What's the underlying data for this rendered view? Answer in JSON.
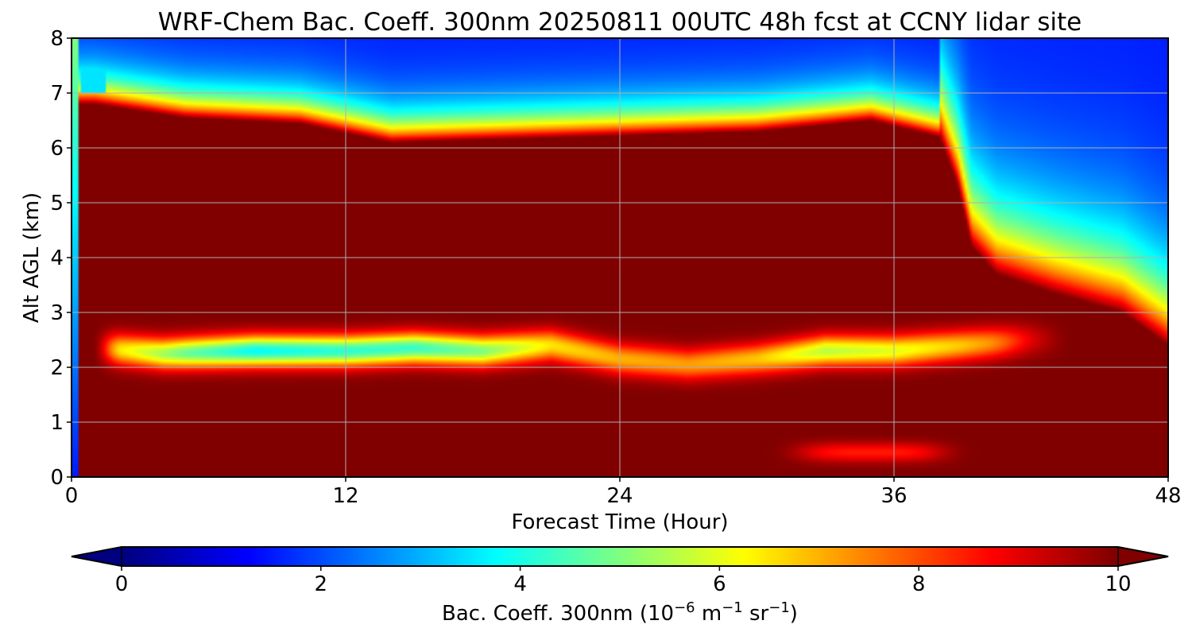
{
  "chart_data": {
    "type": "heatmap",
    "title": "WRF-Chem Bac. Coeff. 300nm  20250811 00UTC 48h fcst at CCNY lidar site",
    "xlabel": "Forecast Time (Hour)",
    "ylabel": "Alt AGL (km)",
    "xlim": [
      0,
      48
    ],
    "ylim": [
      0,
      8
    ],
    "xticks": [
      0,
      12,
      24,
      36,
      48
    ],
    "yticks": [
      0,
      1,
      2,
      3,
      4,
      5,
      6,
      7,
      8
    ],
    "grid": true,
    "colormap": "jet",
    "colorbar": {
      "label_main": "Bac. Coeff. 300nm  (10",
      "label_exp1": "−6",
      "label_mid": " m",
      "label_exp2": "−1",
      "label_mid2": " sr",
      "label_exp3": "−1",
      "label_end": ")",
      "range": [
        0,
        10
      ],
      "ticks": [
        0,
        2,
        4,
        6,
        8,
        10
      ],
      "extend": "both",
      "orientation": "horizontal"
    },
    "features": {
      "saturated_background_value": 10,
      "clean_air_value": 1.5,
      "upper_layer_top_km": [
        [
          1,
          6.8
        ],
        [
          5,
          6.55
        ],
        [
          10,
          6.45
        ],
        [
          14,
          6.1
        ],
        [
          18,
          6.15
        ],
        [
          22,
          6.2
        ],
        [
          26,
          6.25
        ],
        [
          30,
          6.3
        ],
        [
          35,
          6.5
        ],
        [
          38,
          6.2
        ],
        [
          38.8,
          5.3
        ],
        [
          39.4,
          4.2
        ],
        [
          40.5,
          3.7
        ],
        [
          43,
          3.35
        ],
        [
          46,
          3.0
        ],
        [
          48,
          2.4
        ]
      ],
      "mid_clean_layer": {
        "center_km": [
          [
            1.3,
            2.35
          ],
          [
            4,
            2.25
          ],
          [
            8,
            2.3
          ],
          [
            12,
            2.3
          ],
          [
            15,
            2.35
          ],
          [
            18,
            2.3
          ],
          [
            21,
            2.4
          ],
          [
            24,
            2.15
          ],
          [
            27,
            2.05
          ],
          [
            30,
            2.15
          ],
          [
            33,
            2.3
          ],
          [
            36,
            2.3
          ],
          [
            39,
            2.4
          ],
          [
            42,
            2.5
          ]
        ],
        "min_value": [
          [
            2,
            6.5
          ],
          [
            5,
            4.8
          ],
          [
            8,
            3.8
          ],
          [
            12,
            4.2
          ],
          [
            15,
            4.3
          ],
          [
            18,
            5.0
          ],
          [
            21,
            6.5
          ],
          [
            24,
            7.0
          ],
          [
            27,
            7.2
          ],
          [
            30,
            6.8
          ],
          [
            33,
            5.6
          ],
          [
            36,
            6.0
          ],
          [
            39,
            6.8
          ],
          [
            42,
            8.0
          ]
        ]
      },
      "low_layer_patch": {
        "x_range_hours": [
          30,
          40
        ],
        "center_km": 0.45,
        "value": 8.5
      }
    }
  }
}
